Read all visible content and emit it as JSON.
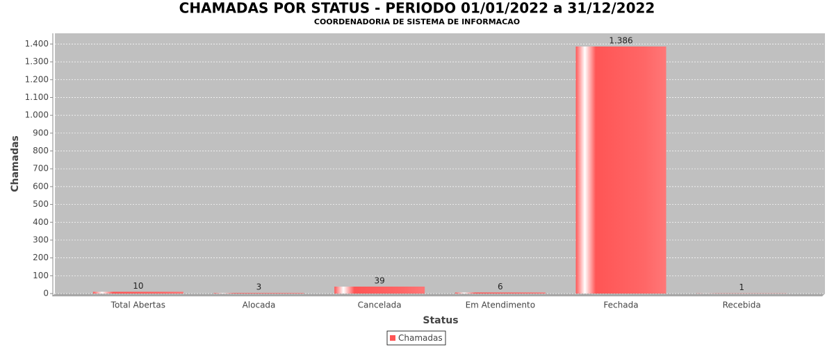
{
  "chart_data": {
    "type": "bar",
    "title": "CHAMADAS POR STATUS - PERIODO 01/01/2022 a 31/12/2022",
    "subtitle": "COORDENADORIA DE SISTEMA DE INFORMACAO",
    "x_label": "Status",
    "y_label": "Chamadas",
    "categories": [
      "Total Abertas",
      "Alocada",
      "Cancelada",
      "Em Atendimento",
      "Fechada",
      "Recebida"
    ],
    "series": [
      {
        "name": "Chamadas",
        "color": "#ff5555",
        "values": [
          10,
          3,
          39,
          6,
          1386,
          1
        ],
        "value_labels": [
          "10",
          "3",
          "39",
          "6",
          "1.386",
          "1"
        ]
      }
    ],
    "ylim": [
      0,
      1460
    ],
    "yticks": [
      0,
      100,
      200,
      300,
      400,
      500,
      600,
      700,
      800,
      900,
      {
        "value": 1000,
        "label": "1.000"
      },
      {
        "value": 1100,
        "label": "1.100"
      },
      {
        "value": 1200,
        "label": "1.200"
      },
      {
        "value": 1300,
        "label": "1.300"
      },
      {
        "value": 1400,
        "label": "1.400"
      }
    ],
    "grid": true,
    "legend": "bottom"
  }
}
